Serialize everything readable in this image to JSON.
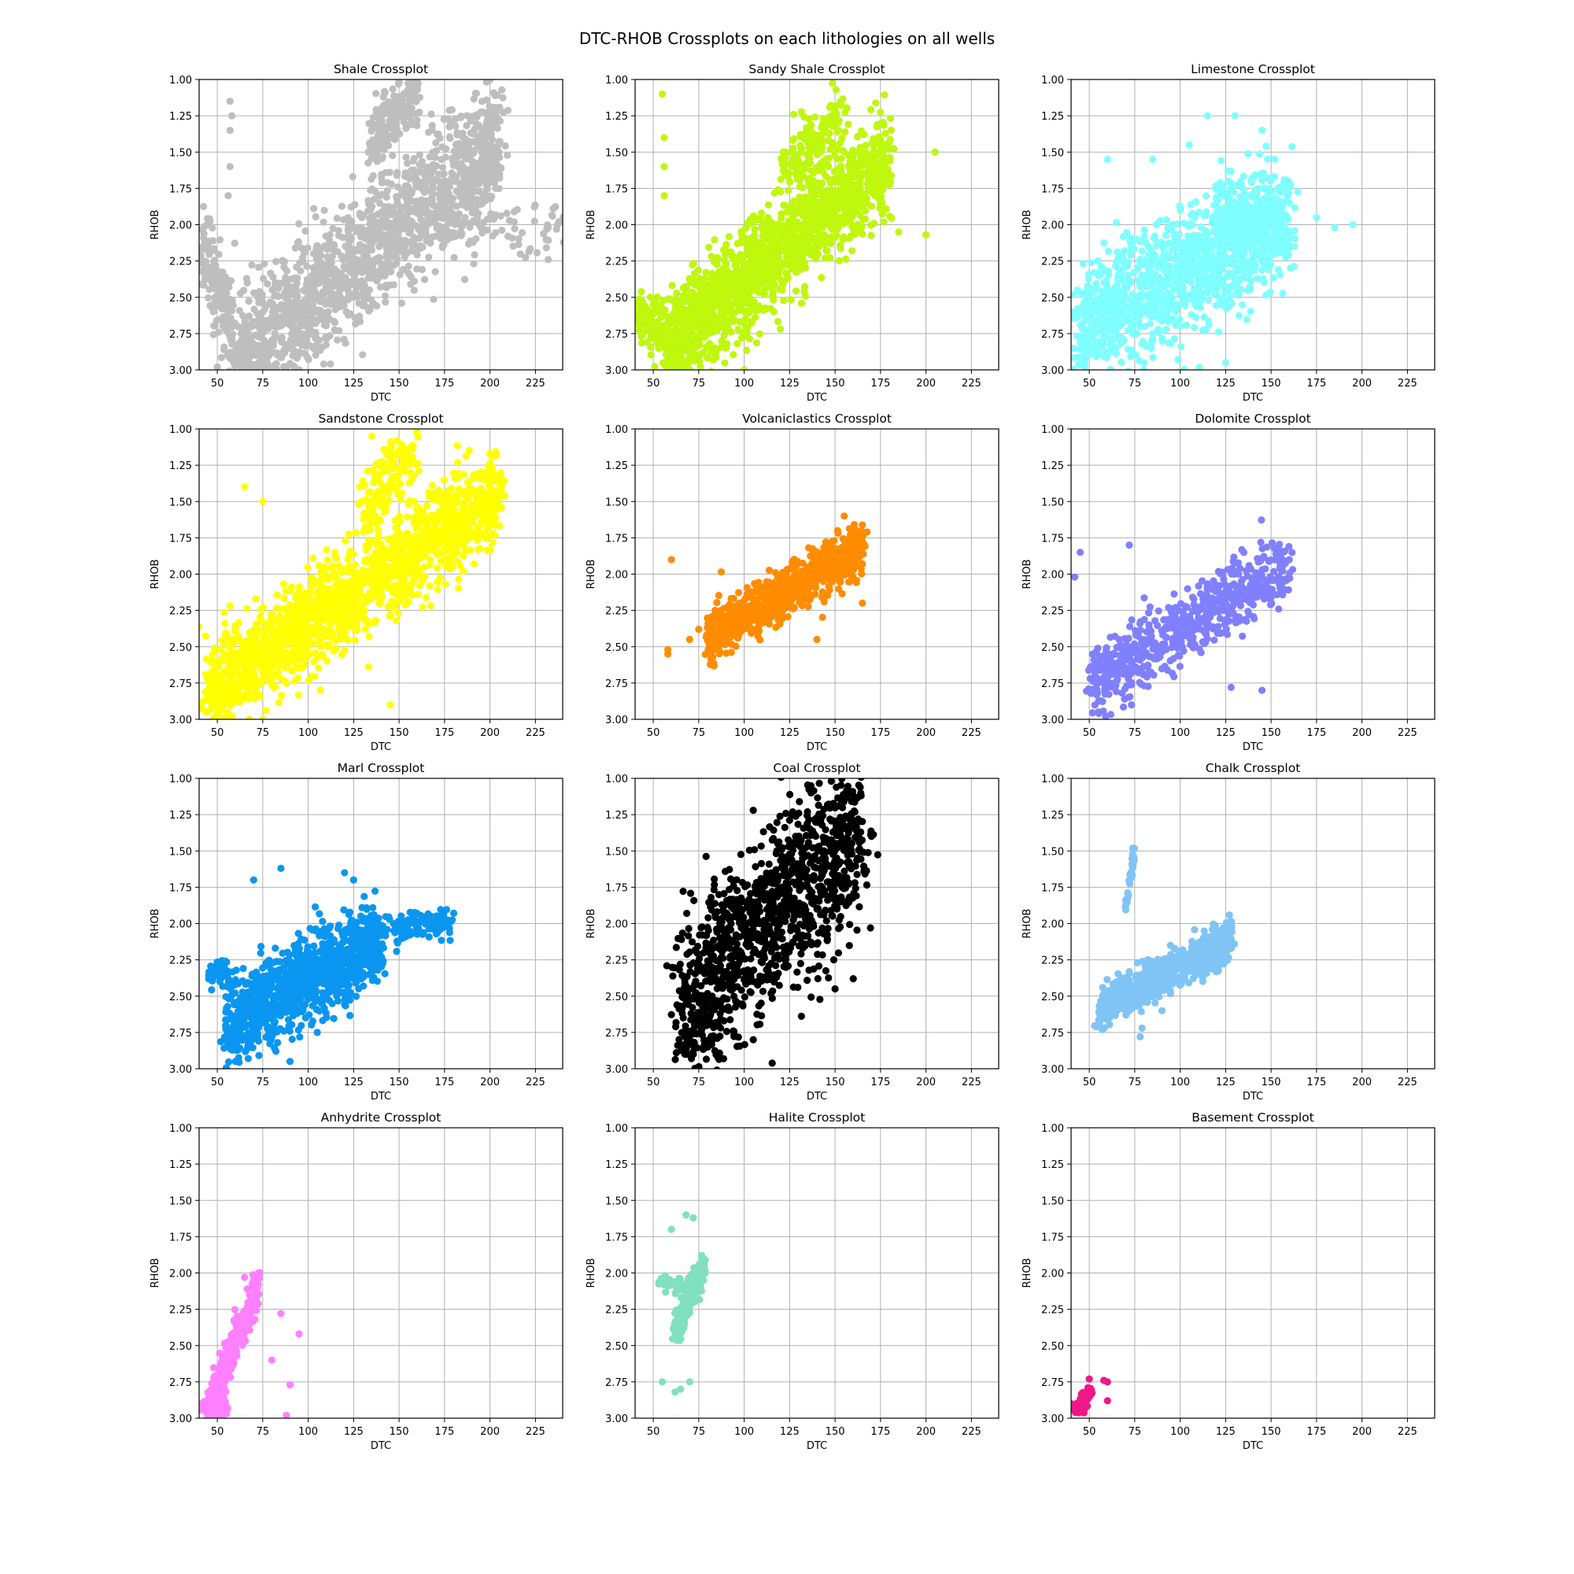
{
  "figure": {
    "title": "DTC-RHOB Crossplots on each lithologies on all wells"
  },
  "chart_data": [
    {
      "type": "scatter",
      "title": "Shale Crossplot",
      "xlabel": "DTC",
      "ylabel": "RHOB",
      "xlim": [
        40,
        240
      ],
      "ylim": [
        3.0,
        1.0
      ],
      "xticks": [
        50,
        75,
        100,
        125,
        150,
        175,
        200,
        225
      ],
      "yticks": [
        1.0,
        1.25,
        1.5,
        1.75,
        2.0,
        2.25,
        2.5,
        2.75,
        3.0
      ],
      "grid": true,
      "color": "#bebebe",
      "clusters": [
        {
          "x": [
            60,
            205
          ],
          "y": [
            2.95,
            1.45
          ],
          "spread": 0.38,
          "n": 1600
        },
        {
          "x": [
            135,
            160
          ],
          "y": [
            1.45,
            1.05
          ],
          "spread": 0.2,
          "n": 220
        },
        {
          "x": [
            40,
            60
          ],
          "y": [
            2.05,
            2.85
          ],
          "spread": 0.25,
          "n": 160
        },
        {
          "x": [
            170,
            240
          ],
          "y": [
            1.95,
            2.05
          ],
          "spread": 0.2,
          "n": 90
        }
      ],
      "points": [
        [
          57,
          1.15
        ],
        [
          57,
          1.35
        ],
        [
          57,
          1.6
        ],
        [
          56,
          1.8
        ],
        [
          58,
          1.25
        ],
        [
          150,
          1.02
        ],
        [
          205,
          1.5
        ],
        [
          232,
          2.02
        ],
        [
          238,
          1.98
        ],
        [
          50,
          2.98
        ],
        [
          95,
          3.0
        ]
      ]
    },
    {
      "type": "scatter",
      "title": "Sandy Shale Crossplot",
      "xlabel": "DTC",
      "ylabel": "RHOB",
      "xlim": [
        40,
        240
      ],
      "ylim": [
        3.0,
        1.0
      ],
      "xticks": [
        50,
        75,
        100,
        125,
        150,
        175,
        200,
        225
      ],
      "yticks": [
        1.0,
        1.25,
        1.5,
        1.75,
        2.0,
        2.25,
        2.5,
        2.75,
        3.0
      ],
      "grid": true,
      "color": "#bff70d",
      "clusters": [
        {
          "x": [
            55,
            180
          ],
          "y": [
            2.85,
            1.55
          ],
          "spread": 0.3,
          "n": 1500
        },
        {
          "x": [
            120,
            155
          ],
          "y": [
            1.65,
            1.25
          ],
          "spread": 0.2,
          "n": 150
        },
        {
          "x": [
            40,
            70
          ],
          "y": [
            2.6,
            2.85
          ],
          "spread": 0.2,
          "n": 120
        }
      ],
      "points": [
        [
          55,
          1.1
        ],
        [
          56,
          1.4
        ],
        [
          56,
          1.6
        ],
        [
          56,
          1.8
        ],
        [
          205,
          1.5
        ],
        [
          200,
          2.07
        ],
        [
          185,
          2.05
        ],
        [
          100,
          3.0
        ],
        [
          90,
          2.85
        ]
      ]
    },
    {
      "type": "scatter",
      "title": "Limestone Crossplot",
      "xlabel": "DTC",
      "ylabel": "RHOB",
      "xlim": [
        40,
        240
      ],
      "ylim": [
        3.0,
        1.0
      ],
      "xticks": [
        50,
        75,
        100,
        125,
        150,
        175,
        200,
        225
      ],
      "yticks": [
        1.0,
        1.25,
        1.5,
        1.75,
        2.0,
        2.25,
        2.5,
        2.75,
        3.0
      ],
      "grid": true,
      "color": "#7fffff",
      "clusters": [
        {
          "x": [
            45,
            160
          ],
          "y": [
            2.7,
            1.95
          ],
          "spread": 0.35,
          "n": 1300
        },
        {
          "x": [
            120,
            160
          ],
          "y": [
            1.85,
            2.05
          ],
          "spread": 0.25,
          "n": 150
        }
      ],
      "points": [
        [
          115,
          1.25
        ],
        [
          130,
          1.25
        ],
        [
          145,
          1.35
        ],
        [
          105,
          1.45
        ],
        [
          85,
          1.55
        ],
        [
          195,
          2.0
        ],
        [
          185,
          2.02
        ],
        [
          175,
          1.95
        ],
        [
          80,
          3.0
        ],
        [
          125,
          2.95
        ],
        [
          60,
          1.55
        ]
      ]
    },
    {
      "type": "scatter",
      "title": "Sandstone Crossplot",
      "xlabel": "DTC",
      "ylabel": "RHOB",
      "xlim": [
        40,
        240
      ],
      "ylim": [
        3.0,
        1.0
      ],
      "xticks": [
        50,
        75,
        100,
        125,
        150,
        175,
        200,
        225
      ],
      "yticks": [
        1.0,
        1.25,
        1.5,
        1.75,
        2.0,
        2.25,
        2.5,
        2.75,
        3.0
      ],
      "grid": true,
      "color": "#ffff00",
      "clusters": [
        {
          "x": [
            45,
            205
          ],
          "y": [
            2.8,
            1.45
          ],
          "spread": 0.28,
          "n": 1700
        },
        {
          "x": [
            130,
            160
          ],
          "y": [
            1.55,
            1.15
          ],
          "spread": 0.2,
          "n": 150
        }
      ],
      "points": [
        [
          135,
          1.05
        ],
        [
          150,
          1.15
        ],
        [
          55,
          3.0
        ],
        [
          75,
          3.0
        ],
        [
          145,
          2.9
        ],
        [
          200,
          1.55
        ],
        [
          65,
          1.4
        ],
        [
          75,
          1.5
        ]
      ]
    },
    {
      "type": "scatter",
      "title": "Volcaniclastics Crossplot",
      "xlabel": "DTC",
      "ylabel": "RHOB",
      "xlim": [
        40,
        240
      ],
      "ylim": [
        3.0,
        1.0
      ],
      "xticks": [
        50,
        75,
        100,
        125,
        150,
        175,
        200,
        225
      ],
      "yticks": [
        1.0,
        1.25,
        1.5,
        1.75,
        2.0,
        2.25,
        2.5,
        2.75,
        3.0
      ],
      "grid": true,
      "color": "#ff8c00",
      "clusters": [
        {
          "x": [
            80,
            165
          ],
          "y": [
            2.45,
            1.8
          ],
          "spread": 0.15,
          "n": 900
        }
      ],
      "points": [
        [
          58,
          2.52
        ],
        [
          58,
          2.55
        ],
        [
          60,
          1.9
        ],
        [
          70,
          2.45
        ],
        [
          75,
          2.38
        ],
        [
          165,
          2.2
        ],
        [
          155,
          1.6
        ],
        [
          140,
          2.45
        ]
      ]
    },
    {
      "type": "scatter",
      "title": "Dolomite Crossplot",
      "xlabel": "DTC",
      "ylabel": "RHOB",
      "xlim": [
        40,
        240
      ],
      "ylim": [
        3.0,
        1.0
      ],
      "xticks": [
        50,
        75,
        100,
        125,
        150,
        175,
        200,
        225
      ],
      "yticks": [
        1.0,
        1.25,
        1.5,
        1.75,
        2.0,
        2.25,
        2.5,
        2.75,
        3.0
      ],
      "grid": true,
      "color": "#8080ff",
      "clusters": [
        {
          "x": [
            50,
            160
          ],
          "y": [
            2.75,
            1.95
          ],
          "spread": 0.22,
          "n": 650
        }
      ],
      "points": [
        [
          42,
          2.02
        ],
        [
          45,
          1.85
        ],
        [
          72,
          1.8
        ],
        [
          55,
          2.95
        ],
        [
          135,
          1.85
        ],
        [
          145,
          2.8
        ],
        [
          128,
          2.78
        ]
      ]
    },
    {
      "type": "scatter",
      "title": "Marl Crossplot",
      "xlabel": "DTC",
      "ylabel": "RHOB",
      "xlim": [
        40,
        240
      ],
      "ylim": [
        3.0,
        1.0
      ],
      "xticks": [
        50,
        75,
        100,
        125,
        150,
        175,
        200,
        225
      ],
      "yticks": [
        1.0,
        1.25,
        1.5,
        1.75,
        2.0,
        2.25,
        2.5,
        2.75,
        3.0
      ],
      "grid": true,
      "color": "#0a96f0",
      "clusters": [
        {
          "x": [
            55,
            140
          ],
          "y": [
            2.7,
            2.1
          ],
          "spread": 0.25,
          "n": 1100
        },
        {
          "x": [
            140,
            180
          ],
          "y": [
            2.05,
            1.98
          ],
          "spread": 0.1,
          "n": 120
        },
        {
          "x": [
            45,
            55
          ],
          "y": [
            2.35,
            2.3
          ],
          "spread": 0.08,
          "n": 40
        }
      ],
      "points": [
        [
          85,
          1.62
        ],
        [
          120,
          1.65
        ],
        [
          125,
          1.7
        ],
        [
          70,
          1.7
        ],
        [
          60,
          2.95
        ],
        [
          90,
          2.95
        ],
        [
          105,
          2.75
        ]
      ]
    },
    {
      "type": "scatter",
      "title": "Coal Crossplot",
      "xlabel": "DTC",
      "ylabel": "RHOB",
      "xlim": [
        40,
        240
      ],
      "ylim": [
        3.0,
        1.0
      ],
      "xticks": [
        50,
        75,
        100,
        125,
        150,
        175,
        200,
        225
      ],
      "yticks": [
        1.0,
        1.25,
        1.5,
        1.75,
        2.0,
        2.25,
        2.5,
        2.75,
        3.0
      ],
      "grid": true,
      "color": "#000000",
      "clusters": [
        {
          "x": [
            65,
            165
          ],
          "y": [
            2.6,
            1.3
          ],
          "spread": 0.55,
          "n": 1200
        }
      ],
      "points": [
        [
          80,
          2.85
        ],
        [
          105,
          2.8
        ],
        [
          70,
          2.8
        ],
        [
          170,
          1.4
        ],
        [
          150,
          2.45
        ],
        [
          160,
          2.38
        ],
        [
          105,
          1.22
        ],
        [
          130,
          1.24
        ]
      ]
    },
    {
      "type": "scatter",
      "title": "Chalk Crossplot",
      "xlabel": "DTC",
      "ylabel": "RHOB",
      "xlim": [
        40,
        240
      ],
      "ylim": [
        3.0,
        1.0
      ],
      "xticks": [
        50,
        75,
        100,
        125,
        150,
        175,
        200,
        225
      ],
      "yticks": [
        1.0,
        1.25,
        1.5,
        1.75,
        2.0,
        2.25,
        2.5,
        2.75,
        3.0
      ],
      "grid": true,
      "color": "#7fc4f5",
      "clusters": [
        {
          "x": [
            55,
            128
          ],
          "y": [
            2.6,
            2.1
          ],
          "spread": 0.12,
          "n": 700
        },
        {
          "x": [
            70,
            75
          ],
          "y": [
            1.9,
            1.5
          ],
          "spread": 0.03,
          "n": 30
        },
        {
          "x": [
            110,
            122
          ],
          "y": [
            2.32,
            2.32
          ],
          "spread": 0.03,
          "n": 25
        }
      ],
      "points": [
        [
          78,
          2.78
        ],
        [
          79,
          2.72
        ],
        [
          90,
          2.6
        ],
        [
          74,
          1.48
        ]
      ]
    },
    {
      "type": "scatter",
      "title": "Anhydrite Crossplot",
      "xlabel": "DTC",
      "ylabel": "RHOB",
      "xlim": [
        40,
        240
      ],
      "ylim": [
        3.0,
        1.0
      ],
      "xticks": [
        50,
        75,
        100,
        125,
        150,
        175,
        200,
        225
      ],
      "yticks": [
        1.0,
        1.25,
        1.5,
        1.75,
        2.0,
        2.25,
        2.5,
        2.75,
        3.0
      ],
      "grid": true,
      "color": "#ff80ff",
      "clusters": [
        {
          "x": [
            45,
            72
          ],
          "y": [
            2.95,
            2.1
          ],
          "spread": 0.12,
          "n": 450
        },
        {
          "x": [
            40,
            55
          ],
          "y": [
            2.92,
            2.95
          ],
          "spread": 0.05,
          "n": 60
        }
      ],
      "points": [
        [
          65,
          2.03
        ],
        [
          70,
          2.05
        ],
        [
          85,
          2.28
        ],
        [
          95,
          2.42
        ],
        [
          90,
          2.77
        ],
        [
          80,
          2.6
        ],
        [
          88,
          2.98
        ]
      ]
    },
    {
      "type": "scatter",
      "title": "Halite Crossplot",
      "xlabel": "DTC",
      "ylabel": "RHOB",
      "xlim": [
        40,
        240
      ],
      "ylim": [
        3.0,
        1.0
      ],
      "xticks": [
        50,
        75,
        100,
        125,
        150,
        175,
        200,
        225
      ],
      "yticks": [
        1.0,
        1.25,
        1.5,
        1.75,
        2.0,
        2.25,
        2.5,
        2.75,
        3.0
      ],
      "grid": true,
      "color": "#80e0c0",
      "clusters": [
        {
          "x": [
            62,
            78
          ],
          "y": [
            2.4,
            1.95
          ],
          "spread": 0.1,
          "n": 260
        },
        {
          "x": [
            52,
            72
          ],
          "y": [
            2.08,
            2.08
          ],
          "spread": 0.04,
          "n": 40
        }
      ],
      "points": [
        [
          68,
          1.6
        ],
        [
          72,
          1.62
        ],
        [
          60,
          1.7
        ],
        [
          55,
          2.75
        ],
        [
          65,
          2.8
        ],
        [
          62,
          2.82
        ],
        [
          70,
          2.75
        ],
        [
          78,
          1.95
        ]
      ]
    },
    {
      "type": "scatter",
      "title": "Basement Crossplot",
      "xlabel": "DTC",
      "ylabel": "RHOB",
      "xlim": [
        40,
        240
      ],
      "ylim": [
        3.0,
        1.0
      ],
      "xticks": [
        50,
        75,
        100,
        125,
        150,
        175,
        200,
        225
      ],
      "yticks": [
        1.0,
        1.25,
        1.5,
        1.75,
        2.0,
        2.25,
        2.5,
        2.75,
        3.0
      ],
      "grid": true,
      "color": "#f01888",
      "clusters": [
        {
          "x": [
            42,
            52
          ],
          "y": [
            2.95,
            2.8
          ],
          "spread": 0.05,
          "n": 70
        }
      ],
      "points": [
        [
          50,
          2.73
        ],
        [
          58,
          2.74
        ],
        [
          60,
          2.75
        ],
        [
          60,
          2.88
        ],
        [
          44,
          2.95
        ],
        [
          40,
          2.9
        ]
      ]
    }
  ]
}
